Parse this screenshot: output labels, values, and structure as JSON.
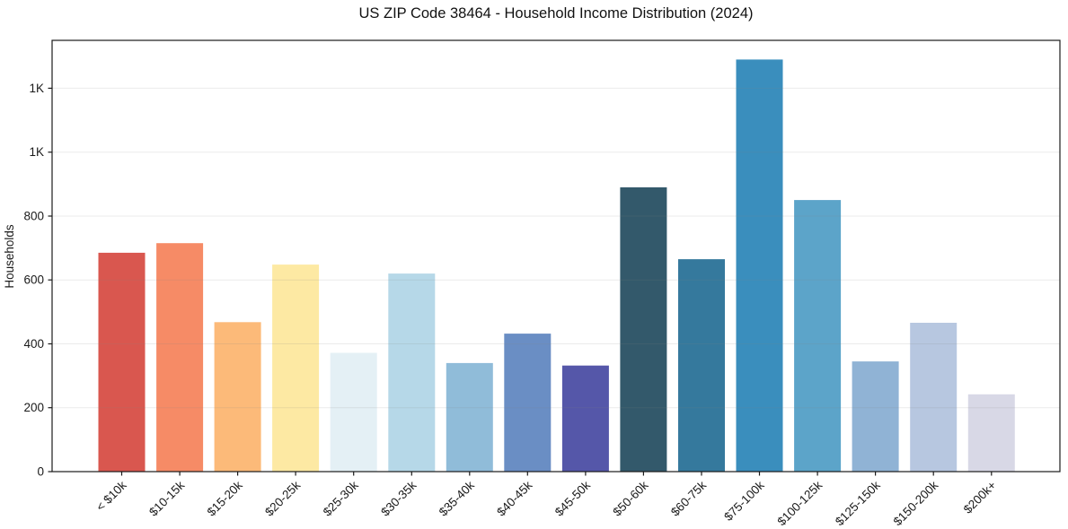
{
  "chart_data": {
    "type": "bar",
    "title": "US ZIP Code 38464 - Household Income Distribution (2024)",
    "xlabel": "",
    "ylabel": "Households",
    "categories": [
      "< $10k",
      "$10-15k",
      "$15-20k",
      "$20-25k",
      "$25-30k",
      "$30-35k",
      "$35-40k",
      "$40-45k",
      "$45-50k",
      "$50-60k",
      "$60-75k",
      "$75-100k",
      "$100-125k",
      "$125-150k",
      "$150-200k",
      "$200k+"
    ],
    "values": [
      685,
      715,
      468,
      648,
      372,
      620,
      340,
      432,
      332,
      890,
      665,
      1290,
      850,
      345,
      466,
      242
    ],
    "bar_colors": [
      "#d9574f",
      "#f68b66",
      "#fcba79",
      "#fde9a3",
      "#e4f0f5",
      "#b6d8e8",
      "#90bcd9",
      "#6a8ec4",
      "#5557a9",
      "#33596b",
      "#35799d",
      "#3a8ebd",
      "#5ca4c9",
      "#90b3d5",
      "#b7c7e0",
      "#d8d8e6"
    ],
    "ylim": [
      0,
      1350
    ],
    "yticks": [
      0,
      200,
      400,
      600,
      800,
      1000,
      1200
    ],
    "ytick_labels": [
      "0",
      "200",
      "400",
      "600",
      "800",
      "1K",
      "1K"
    ],
    "grid": "horizontal",
    "legend": "none",
    "background_color": "#ffffff",
    "spine_color": "#1a1a1a",
    "gridline_color": "#ebebeb",
    "tick_label_color": "#1a1a1a"
  }
}
